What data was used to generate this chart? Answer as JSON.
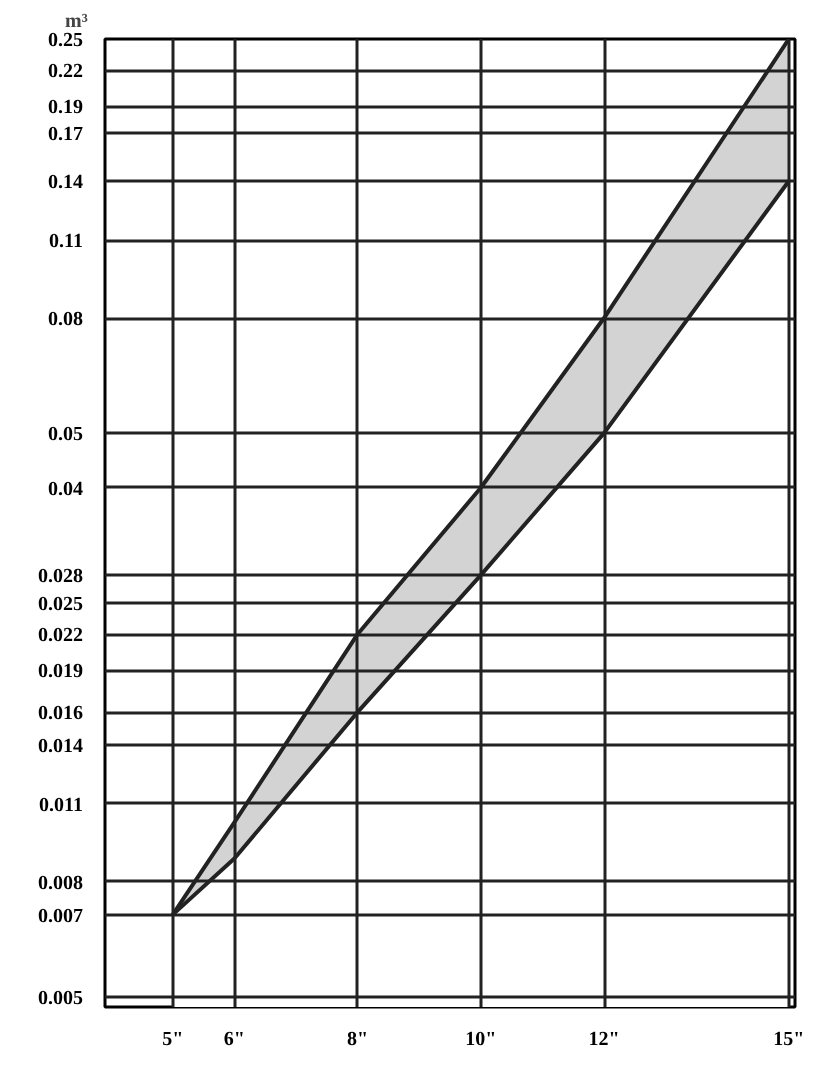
{
  "chart_data": {
    "type": "area",
    "ylabel": "m³",
    "x": [
      5,
      6,
      8,
      10,
      12,
      15
    ],
    "series": [
      {
        "color": "#d3d3d3",
        "values": [
          0.007,
          0.0102,
          0.022,
          0.04,
          0.08,
          0.25
        ]
      },
      {
        "color": "#ffffff",
        "values": [
          0.007,
          0.0088,
          0.016,
          0.028,
          0.05,
          0.14
        ]
      }
    ],
    "xlim": [
      3.9,
      15.1
    ],
    "ylim": [
      0.0048,
      0.25
    ],
    "log": "y",
    "grid": true,
    "xticks": [
      {
        "value": 5,
        "label": "5\""
      },
      {
        "value": 6,
        "label": "6\""
      },
      {
        "value": 8,
        "label": "8\""
      },
      {
        "value": 10,
        "label": "10\""
      },
      {
        "value": 12,
        "label": "12\""
      },
      {
        "value": 15,
        "label": "15\""
      }
    ],
    "yticks": [
      0.005,
      0.007,
      0.008,
      0.011,
      0.014,
      0.016,
      0.019,
      0.022,
      0.025,
      0.028,
      0.04,
      0.05,
      0.08,
      0.11,
      0.14,
      0.17,
      0.19,
      0.22,
      0.25
    ]
  }
}
